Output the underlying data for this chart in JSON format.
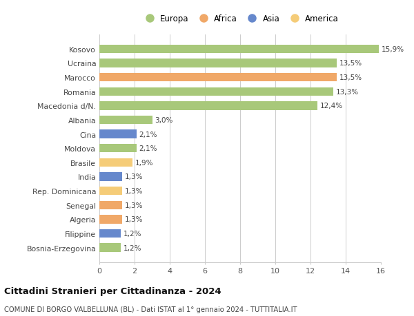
{
  "categories": [
    "Bosnia-Erzegovina",
    "Filippine",
    "Algeria",
    "Senegal",
    "Rep. Dominicana",
    "India",
    "Brasile",
    "Moldova",
    "Cina",
    "Albania",
    "Macedonia d/N.",
    "Romania",
    "Marocco",
    "Ucraina",
    "Kosovo"
  ],
  "values": [
    1.2,
    1.2,
    1.3,
    1.3,
    1.3,
    1.3,
    1.9,
    2.1,
    2.1,
    3.0,
    12.4,
    13.3,
    13.5,
    13.5,
    15.9
  ],
  "colors": [
    "#a8c87a",
    "#6688cc",
    "#f0a868",
    "#f0a868",
    "#f5cc78",
    "#6688cc",
    "#f5cc78",
    "#a8c87a",
    "#6688cc",
    "#a8c87a",
    "#a8c87a",
    "#a8c87a",
    "#f0a868",
    "#a8c87a",
    "#a8c87a"
  ],
  "labels": [
    "1,2%",
    "1,2%",
    "1,3%",
    "1,3%",
    "1,3%",
    "1,3%",
    "1,9%",
    "2,1%",
    "2,1%",
    "3,0%",
    "12,4%",
    "13,3%",
    "13,5%",
    "13,5%",
    "15,9%"
  ],
  "legend": [
    {
      "label": "Europa",
      "color": "#a8c87a"
    },
    {
      "label": "Africa",
      "color": "#f0a868"
    },
    {
      "label": "Asia",
      "color": "#6688cc"
    },
    {
      "label": "America",
      "color": "#f5cc78"
    }
  ],
  "title": "Cittadini Stranieri per Cittadinanza - 2024",
  "subtitle": "COMUNE DI BORGO VALBELLUNA (BL) - Dati ISTAT al 1° gennaio 2024 - TUTTITALIA.IT",
  "xlim": [
    0,
    16
  ],
  "xticks": [
    0,
    2,
    4,
    6,
    8,
    10,
    12,
    14,
    16
  ],
  "background_color": "#ffffff",
  "grid_color": "#cccccc",
  "bar_height": 0.6
}
